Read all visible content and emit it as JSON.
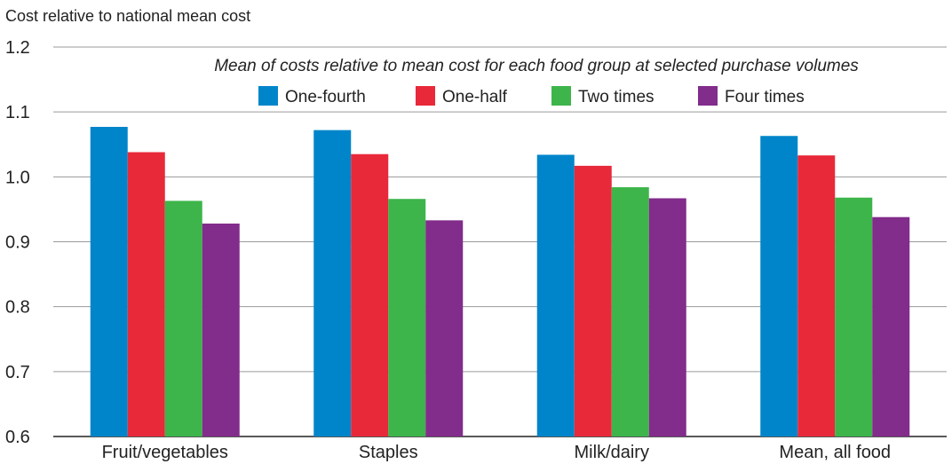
{
  "chart_data": {
    "type": "bar",
    "ylabel": "Cost relative to national mean cost",
    "subtitle": "Mean of costs relative to mean cost for each food group at selected purchase volumes",
    "categories": [
      "Fruit/vegetables",
      "Staples",
      "Milk/dairy",
      "Mean, all food"
    ],
    "ylim": [
      0.6,
      1.2
    ],
    "yticks": [
      "0.6",
      "0.7",
      "0.8",
      "0.9",
      "1.0",
      "1.1",
      "1.2"
    ],
    "grid": true,
    "legend_position": "top-center",
    "series": [
      {
        "name": "One-fourth",
        "color": "#0085CA",
        "values": [
          1.077,
          1.072,
          1.034,
          1.063
        ]
      },
      {
        "name": "One-half",
        "color": "#E8293A",
        "values": [
          1.038,
          1.035,
          1.017,
          1.033
        ]
      },
      {
        "name": "Two times",
        "color": "#3DB54A",
        "values": [
          0.963,
          0.966,
          0.984,
          0.968
        ]
      },
      {
        "name": "Four times",
        "color": "#822C8B",
        "values": [
          0.928,
          0.933,
          0.967,
          0.938
        ]
      }
    ]
  }
}
